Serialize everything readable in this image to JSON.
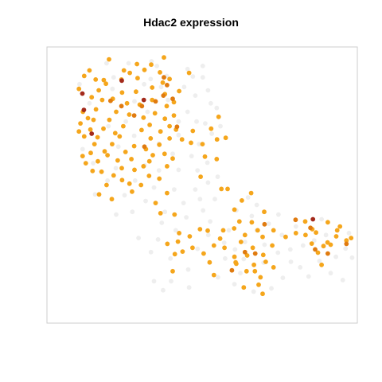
{
  "chart_data": {
    "type": "scatter",
    "title": "Hdac2 expression",
    "xlabel": "",
    "ylabel": "",
    "xlim": [
      0,
      100
    ],
    "ylim": [
      0,
      100
    ],
    "axes": false,
    "grid": false,
    "legend": "none",
    "colors": {
      "low": "#eeeeee",
      "mid": "#f5a61c",
      "high": "#e07b10",
      "max": "#a32a1b",
      "frame": "#cccccc"
    },
    "series": [
      {
        "level": "low",
        "points": [
          [
            19.2,
            94.1
          ],
          [
            26.3,
            94.1
          ],
          [
            33.7,
            94.8
          ],
          [
            35.4,
            93.1
          ],
          [
            21.5,
            89.0
          ],
          [
            31.3,
            86.5
          ],
          [
            36.8,
            85.5
          ],
          [
            44.2,
            85.5
          ],
          [
            47.0,
            89.3
          ],
          [
            50.2,
            89.0
          ],
          [
            51.9,
            84.3
          ],
          [
            47.8,
            82.4
          ],
          [
            52.8,
            79.6
          ],
          [
            45.3,
            76.5
          ],
          [
            42.4,
            73.0
          ],
          [
            48.2,
            73.0
          ],
          [
            51.0,
            72.3
          ],
          [
            53.1,
            68.6
          ],
          [
            49.0,
            64.8
          ],
          [
            42.4,
            68.1
          ],
          [
            40.5,
            61.3
          ],
          [
            46.6,
            60.5
          ],
          [
            51.7,
            58.1
          ],
          [
            48.5,
            55.3
          ],
          [
            42.4,
            55.5
          ],
          [
            36.1,
            55.3
          ],
          [
            31.5,
            57.1
          ],
          [
            28.4,
            51.6
          ],
          [
            34.5,
            49.1
          ],
          [
            41.0,
            48.4
          ],
          [
            47.8,
            48.4
          ],
          [
            51.9,
            50.9
          ],
          [
            55.0,
            53.0
          ],
          [
            49.3,
            44.9
          ],
          [
            44.0,
            43.5
          ],
          [
            38.0,
            40.3
          ],
          [
            44.9,
            38.3
          ],
          [
            50.3,
            40.8
          ],
          [
            54.1,
            44.9
          ],
          [
            27.5,
            40.3
          ],
          [
            22.3,
            39.3
          ],
          [
            15.5,
            46.6
          ],
          [
            19.5,
            51.6
          ],
          [
            22.2,
            56.1
          ],
          [
            14.9,
            57.9
          ],
          [
            11.5,
            63.0
          ],
          [
            23.0,
            63.9
          ],
          [
            36.1,
            65.0
          ],
          [
            28.1,
            67.8
          ],
          [
            19.8,
            71.3
          ],
          [
            25.4,
            73.0
          ],
          [
            32.4,
            76.5
          ],
          [
            39.0,
            80.8
          ],
          [
            28.2,
            80.3
          ],
          [
            21.1,
            84.8
          ],
          [
            13.7,
            79.6
          ],
          [
            10.5,
            86.5
          ],
          [
            33.4,
            88.4
          ],
          [
            38.6,
            89.5
          ],
          [
            45.3,
            92.0
          ],
          [
            50.2,
            93.1
          ],
          [
            54.7,
            77.9
          ],
          [
            55.9,
            71.3
          ],
          [
            41.5,
            33.6
          ],
          [
            35.8,
            30.3
          ],
          [
            39.8,
            23.4
          ],
          [
            45.5,
            19.4
          ],
          [
            40.0,
            15.2
          ],
          [
            45.8,
            12.9
          ],
          [
            37.4,
            11.9
          ],
          [
            34.5,
            15.2
          ],
          [
            48.5,
            26.9
          ],
          [
            52.0,
            31.9
          ],
          [
            57.1,
            29.1
          ],
          [
            57.4,
            23.4
          ],
          [
            60.6,
            26.7
          ],
          [
            63.8,
            29.4
          ],
          [
            67.6,
            33.6
          ],
          [
            70.1,
            28.4
          ],
          [
            74.4,
            25.5
          ],
          [
            78.4,
            26.7
          ],
          [
            82.5,
            28.1
          ],
          [
            86.1,
            29.9
          ],
          [
            89.9,
            31.9
          ],
          [
            93.1,
            24.0
          ],
          [
            96.2,
            27.0
          ],
          [
            97.3,
            32.6
          ],
          [
            88.5,
            37.6
          ],
          [
            80.2,
            35.0
          ],
          [
            75.7,
            31.9
          ],
          [
            71.5,
            36.0
          ],
          [
            66.0,
            38.8
          ],
          [
            61.0,
            40.8
          ],
          [
            62.3,
            18.1
          ],
          [
            60.4,
            14.1
          ],
          [
            66.6,
            11.4
          ],
          [
            72.3,
            12.6
          ],
          [
            76.0,
            16.4
          ],
          [
            81.6,
            20.2
          ],
          [
            78.6,
            22.2
          ],
          [
            69.8,
            21.9
          ],
          [
            63.4,
            23.2
          ],
          [
            55.1,
            16.6
          ],
          [
            58.6,
            33.6
          ],
          [
            64.8,
            45.5
          ],
          [
            67.6,
            42.8
          ],
          [
            87.8,
            22.5
          ],
          [
            91.4,
            18.1
          ],
          [
            95.3,
            15.6
          ],
          [
            98.3,
            23.7
          ],
          [
            84.3,
            16.9
          ],
          [
            74.6,
            39.3
          ],
          [
            52.6,
            36.8
          ],
          [
            37.0,
            36.3
          ],
          [
            31.8,
            44.2
          ],
          [
            25.0,
            46.3
          ],
          [
            29.5,
            30.8
          ],
          [
            33.5,
            25.7
          ]
        ]
      },
      {
        "level": "mid",
        "points": [
          [
            10.3,
            84.8
          ],
          [
            12.0,
            89.5
          ],
          [
            13.7,
            91.5
          ],
          [
            15.7,
            88.2
          ],
          [
            16.7,
            84.3
          ],
          [
            14.4,
            81.8
          ],
          [
            11.6,
            76.5
          ],
          [
            13.2,
            74.2
          ],
          [
            15.8,
            77.4
          ],
          [
            17.8,
            80.8
          ],
          [
            19.0,
            86.7
          ],
          [
            21.2,
            81.2
          ],
          [
            22.3,
            76.5
          ],
          [
            20.1,
            73.6
          ],
          [
            18.2,
            70.4
          ],
          [
            16.3,
            67.3
          ],
          [
            14.0,
            70.1
          ],
          [
            12.0,
            67.6
          ],
          [
            10.3,
            69.4
          ],
          [
            10.8,
            72.3
          ],
          [
            11.5,
            60.5
          ],
          [
            14.1,
            61.6
          ],
          [
            16.4,
            58.6
          ],
          [
            18.6,
            62.2
          ],
          [
            21.0,
            64.8
          ],
          [
            23.4,
            67.6
          ],
          [
            24.6,
            71.3
          ],
          [
            26.5,
            75.5
          ],
          [
            25.8,
            79.6
          ],
          [
            24.2,
            83.5
          ],
          [
            24.0,
            88.2
          ],
          [
            26.7,
            90.6
          ],
          [
            29.2,
            88.7
          ],
          [
            28.7,
            83.8
          ],
          [
            29.9,
            79.1
          ],
          [
            31.1,
            74.4
          ],
          [
            30.5,
            69.9
          ],
          [
            28.1,
            64.1
          ],
          [
            27.2,
            59.4
          ],
          [
            24.1,
            56.1
          ],
          [
            21.5,
            53.5
          ],
          [
            19.2,
            50.0
          ],
          [
            16.8,
            46.6
          ],
          [
            14.7,
            55.1
          ],
          [
            17.6,
            54.8
          ],
          [
            22.8,
            58.9
          ],
          [
            25.3,
            62.0
          ],
          [
            31.9,
            63.0
          ],
          [
            33.4,
            66.9
          ],
          [
            33.1,
            71.8
          ],
          [
            34.8,
            76.0
          ],
          [
            33.9,
            80.8
          ],
          [
            33.9,
            85.3
          ],
          [
            31.4,
            91.7
          ],
          [
            29.0,
            93.8
          ],
          [
            20.0,
            95.5
          ],
          [
            33.6,
            93.6
          ],
          [
            36.4,
            90.8
          ],
          [
            37.3,
            87.1
          ],
          [
            38.0,
            82.9
          ],
          [
            38.6,
            78.6
          ],
          [
            38.0,
            74.0
          ],
          [
            36.6,
            69.4
          ],
          [
            36.2,
            64.6
          ],
          [
            34.1,
            60.8
          ],
          [
            31.1,
            56.8
          ],
          [
            28.2,
            55.5
          ],
          [
            26.6,
            50.5
          ],
          [
            27.4,
            47.6
          ],
          [
            30.3,
            50.0
          ],
          [
            32.9,
            53.3
          ],
          [
            36.2,
            52.3
          ],
          [
            38.7,
            56.8
          ],
          [
            40.5,
            59.6
          ],
          [
            37.9,
            61.3
          ],
          [
            39.5,
            66.9
          ],
          [
            41.6,
            70.1
          ],
          [
            43.5,
            66.5
          ],
          [
            40.9,
            75.2
          ],
          [
            40.9,
            80.0
          ],
          [
            42.6,
            84.0
          ],
          [
            39.5,
            88.4
          ],
          [
            22.0,
            68.8
          ],
          [
            19.5,
            60.8
          ],
          [
            15.3,
            64.8
          ],
          [
            12.5,
            57.9
          ],
          [
            24.2,
            51.8
          ],
          [
            20.9,
            44.9
          ],
          [
            35.0,
            43.5
          ],
          [
            38.7,
            47.1
          ],
          [
            33.0,
            58.6
          ],
          [
            45.8,
            90.6
          ],
          [
            37.7,
            96.2
          ],
          [
            24.8,
            91.5
          ],
          [
            15.0,
            73.6
          ],
          [
            18.3,
            88.0
          ],
          [
            39.5,
            71.3
          ],
          [
            50.1,
            64.8
          ],
          [
            54.8,
            66.5
          ],
          [
            50.9,
            60.3
          ],
          [
            54.7,
            59.4
          ],
          [
            49.5,
            53.0
          ],
          [
            56.2,
            48.6
          ],
          [
            46.4,
            65.3
          ],
          [
            47.0,
            69.6
          ],
          [
            52.9,
            70.4
          ],
          [
            55.3,
            74.7
          ],
          [
            57.6,
            67.1
          ],
          [
            58.2,
            48.6
          ],
          [
            36.6,
            39.8
          ],
          [
            41.1,
            39.3
          ],
          [
            51.8,
            33.5
          ],
          [
            53.8,
            28.1
          ],
          [
            50.5,
            25.2
          ],
          [
            46.9,
            27.3
          ],
          [
            43.7,
            25.9
          ],
          [
            46.0,
            31.4
          ],
          [
            42.2,
            29.5
          ],
          [
            38.8,
            28.7
          ],
          [
            40.5,
            18.8
          ],
          [
            41.2,
            25.0
          ],
          [
            49.3,
            34.0
          ],
          [
            55.8,
            30.6
          ],
          [
            60.4,
            24.0
          ],
          [
            62.5,
            29.4
          ],
          [
            63.8,
            31.9
          ],
          [
            62.0,
            36.8
          ],
          [
            60.3,
            34.3
          ],
          [
            56.8,
            33.6
          ],
          [
            60.8,
            22.0
          ],
          [
            64.5,
            24.5
          ],
          [
            66.7,
            21.1
          ],
          [
            69.7,
            24.7
          ],
          [
            72.6,
            28.1
          ],
          [
            69.5,
            31.2
          ],
          [
            66.3,
            27.3
          ],
          [
            67.9,
            33.6
          ],
          [
            70.0,
            40.3
          ],
          [
            60.4,
            41.1
          ],
          [
            62.8,
            44.4
          ],
          [
            65.8,
            47.1
          ],
          [
            73.0,
            33.6
          ],
          [
            76.9,
            31.2
          ],
          [
            80.2,
            32.6
          ],
          [
            83.3,
            31.9
          ],
          [
            86.7,
            32.8
          ],
          [
            89.1,
            27.9
          ],
          [
            91.4,
            28.4
          ],
          [
            93.2,
            31.4
          ],
          [
            96.5,
            29.9
          ],
          [
            98.0,
            30.8
          ],
          [
            93.5,
            33.6
          ],
          [
            90.5,
            36.5
          ],
          [
            85.5,
            34.0
          ],
          [
            87.3,
            25.5
          ],
          [
            63.4,
            12.9
          ],
          [
            64.3,
            18.8
          ],
          [
            68.2,
            13.9
          ],
          [
            68.8,
            16.6
          ],
          [
            69.5,
            10.6
          ],
          [
            67.0,
            18.8
          ],
          [
            61.0,
            21.5
          ],
          [
            73.0,
            20.2
          ],
          [
            70.5,
            22.2
          ],
          [
            83.2,
            36.8
          ],
          [
            66.0,
            36.5
          ],
          [
            57.2,
            27.3
          ],
          [
            52.4,
            22.0
          ],
          [
            88.5,
            21.1
          ],
          [
            90.4,
            29.2
          ],
          [
            94.4,
            35.0
          ],
          [
            85.3,
            28.8
          ],
          [
            42.6,
            32.6
          ],
          [
            53.8,
            17.4
          ]
        ]
      },
      {
        "level": "high",
        "points": [
          [
            20.5,
            80.5
          ],
          [
            37.7,
            89.0
          ],
          [
            24.0,
            78.6
          ],
          [
            30.6,
            78.6
          ],
          [
            40.5,
            81.2
          ],
          [
            31.4,
            63.9
          ],
          [
            28.1,
            75.2
          ],
          [
            37.5,
            82.4
          ],
          [
            63.8,
            25.7
          ],
          [
            59.6,
            19.1
          ],
          [
            67.1,
            25.2
          ],
          [
            70.1,
            35.8
          ],
          [
            86.4,
            26.7
          ],
          [
            84.9,
            34.5
          ],
          [
            90.5,
            25.2
          ],
          [
            80.1,
            37.4
          ],
          [
            96.5,
            28.7
          ],
          [
            35.0,
            80.3
          ],
          [
            41.9,
            71.1
          ],
          [
            38.7,
            86.2
          ]
        ]
      },
      {
        "level": "max",
        "points": [
          [
            11.4,
            83.1
          ],
          [
            14.4,
            68.6
          ],
          [
            24.1,
            87.8
          ],
          [
            31.2,
            80.8
          ],
          [
            11.9,
            77.2
          ],
          [
            85.7,
            37.6
          ]
        ]
      }
    ]
  }
}
